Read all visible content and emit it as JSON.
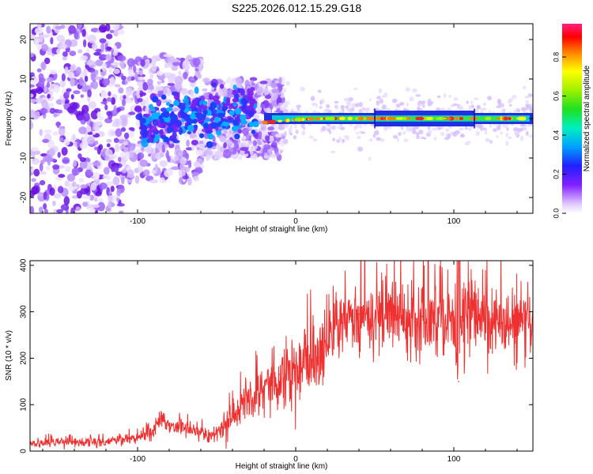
{
  "title": "S225.2026.012.15.29.G18",
  "chart_data": [
    {
      "type": "heatmap",
      "title": "S225.2026.012.15.29.G18",
      "xlabel": "Height of straight line (km)",
      "ylabel": "Frequency (Hz)",
      "xlim": [
        -168,
        150
      ],
      "ylim": [
        -24,
        24
      ],
      "xticks": [
        -100,
        0,
        100
      ],
      "yticks": [
        -20,
        -10,
        0,
        10,
        20
      ],
      "colorbar": {
        "label": "Normalized spectral amplitude",
        "range": [
          0.0,
          0.97
        ],
        "ticks": [
          0.0,
          0.2,
          0.4,
          0.6,
          0.8
        ],
        "tick_labels": [
          "0.0",
          "0.2",
          "0.4",
          "0.6",
          "0.8"
        ]
      },
      "signal_line": {
        "x": [
          -30,
          -20,
          0,
          20,
          50,
          100,
          113,
          150
        ],
        "frequency": [
          -2.5,
          -1.0,
          -0.3,
          0.0,
          0.0,
          0.0,
          0.0,
          0.0
        ]
      }
    },
    {
      "type": "line",
      "xlabel": "Height of straight line (km)",
      "ylabel": "SNR (10 * v/v)",
      "xlim": [
        -168,
        150
      ],
      "ylim": [
        0,
        410
      ],
      "xticks": [
        -100,
        0,
        100
      ],
      "yticks": [
        0,
        100,
        200,
        300,
        400
      ],
      "series": [
        {
          "name": "SNR",
          "color": "#ee3030",
          "x": [
            -168,
            -150,
            -120,
            -100,
            -90,
            -85,
            -80,
            -70,
            -60,
            -55,
            -50,
            -40,
            -30,
            -20,
            -10,
            0,
            10,
            20,
            30,
            40,
            60,
            80,
            100,
            103,
            105,
            110,
            130,
            150
          ],
          "y": [
            18,
            18,
            20,
            28,
            45,
            70,
            55,
            50,
            40,
            30,
            38,
            75,
            110,
            140,
            165,
            180,
            195,
            230,
            275,
            295,
            295,
            290,
            290,
            150,
            290,
            290,
            275,
            260
          ]
        }
      ]
    }
  ]
}
